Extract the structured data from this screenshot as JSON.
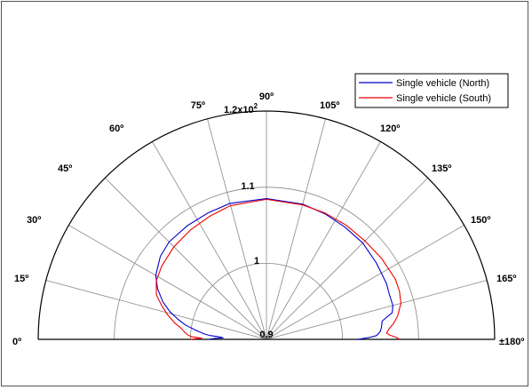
{
  "chart_data": {
    "type": "line",
    "subtype": "polar-half",
    "theta_range_deg": [
      0,
      180
    ],
    "r_range": [
      0.9,
      1.2
    ],
    "theta_ticks": [
      {
        "deg": 0,
        "label": "0º"
      },
      {
        "deg": 15,
        "label": "15º"
      },
      {
        "deg": 30,
        "label": "30º"
      },
      {
        "deg": 45,
        "label": "45º"
      },
      {
        "deg": 60,
        "label": "60º"
      },
      {
        "deg": 75,
        "label": "75º"
      },
      {
        "deg": 90,
        "label": "90º"
      },
      {
        "deg": 105,
        "label": "105º"
      },
      {
        "deg": 120,
        "label": "120º"
      },
      {
        "deg": 135,
        "label": "135º"
      },
      {
        "deg": 150,
        "label": "150º"
      },
      {
        "deg": 165,
        "label": "165º"
      },
      {
        "deg": 180,
        "label": "±180º"
      }
    ],
    "r_ticks": [
      {
        "value": 0.9,
        "label": "0.9"
      },
      {
        "value": 1.0,
        "label": "1"
      },
      {
        "value": 1.1,
        "label": "1.1"
      },
      {
        "value": 1.2,
        "label": "1.2x10",
        "exponent": "2"
      }
    ],
    "grid": true,
    "legend_position": "top-right",
    "series": [
      {
        "name": "Single vehicle (North)",
        "color": "#0000cc",
        "points": [
          [
            0,
            0.976
          ],
          [
            1,
            0.968
          ],
          [
            2,
            0.957
          ],
          [
            3,
            0.962
          ],
          [
            4,
            0.975
          ],
          [
            5,
            0.982
          ],
          [
            7,
            0.992
          ],
          [
            10,
            1.008
          ],
          [
            13,
            1.02
          ],
          [
            16,
            1.032
          ],
          [
            20,
            1.045
          ],
          [
            25,
            1.058
          ],
          [
            30,
            1.068
          ],
          [
            38,
            1.077
          ],
          [
            45,
            1.081
          ],
          [
            55,
            1.082
          ],
          [
            65,
            1.083
          ],
          [
            75,
            1.085
          ],
          [
            90,
            1.085
          ],
          [
            105,
            1.084
          ],
          [
            115,
            1.082
          ],
          [
            125,
            1.08
          ],
          [
            135,
            1.079
          ],
          [
            145,
            1.076
          ],
          [
            155,
            1.074
          ],
          [
            160,
            1.072
          ],
          [
            165,
            1.072
          ],
          [
            168,
            1.069
          ],
          [
            171,
            1.054
          ],
          [
            174,
            1.052
          ],
          [
            176,
            1.05
          ],
          [
            178,
            1.045
          ],
          [
            179,
            1.035
          ],
          [
            180,
            1.02
          ]
        ]
      },
      {
        "name": "Single vehicle (South)",
        "color": "#ee0000",
        "points": [
          [
            0,
            1.0
          ],
          [
            1,
            0.985
          ],
          [
            2,
            0.998
          ],
          [
            3,
            1.003
          ],
          [
            5,
            1.008
          ],
          [
            7,
            1.012
          ],
          [
            10,
            1.022
          ],
          [
            14,
            1.034
          ],
          [
            18,
            1.045
          ],
          [
            22,
            1.056
          ],
          [
            28,
            1.064
          ],
          [
            35,
            1.068
          ],
          [
            45,
            1.072
          ],
          [
            55,
            1.075
          ],
          [
            65,
            1.078
          ],
          [
            75,
            1.082
          ],
          [
            90,
            1.084
          ],
          [
            105,
            1.083
          ],
          [
            115,
            1.083
          ],
          [
            125,
            1.083
          ],
          [
            135,
            1.083
          ],
          [
            145,
            1.085
          ],
          [
            155,
            1.087
          ],
          [
            160,
            1.086
          ],
          [
            165,
            1.083
          ],
          [
            170,
            1.075
          ],
          [
            173,
            1.068
          ],
          [
            175,
            1.062
          ],
          [
            177,
            1.058
          ],
          [
            178,
            1.062
          ],
          [
            179,
            1.07
          ],
          [
            180,
            1.075
          ]
        ]
      }
    ]
  }
}
